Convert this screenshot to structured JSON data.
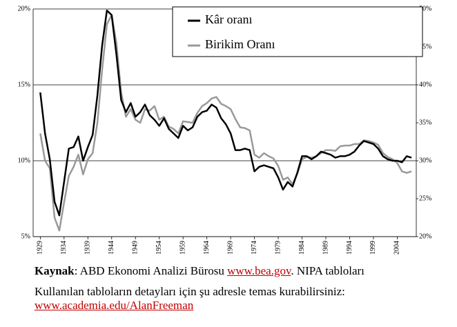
{
  "chart_data": {
    "type": "line",
    "x": [
      1929,
      1930,
      1931,
      1932,
      1933,
      1934,
      1935,
      1936,
      1937,
      1938,
      1939,
      1940,
      1941,
      1942,
      1943,
      1944,
      1945,
      1946,
      1947,
      1948,
      1949,
      1950,
      1951,
      1952,
      1953,
      1954,
      1955,
      1956,
      1957,
      1958,
      1959,
      1960,
      1961,
      1962,
      1963,
      1964,
      1965,
      1966,
      1967,
      1968,
      1969,
      1970,
      1971,
      1972,
      1973,
      1974,
      1975,
      1976,
      1977,
      1978,
      1979,
      1980,
      1981,
      1982,
      1983,
      1984,
      1985,
      1986,
      1987,
      1988,
      1989,
      1990,
      1991,
      1992,
      1993,
      1994,
      1995,
      1996,
      1997,
      1998,
      1999,
      2000,
      2001,
      2002,
      2003,
      2004,
      2005,
      2006,
      2007
    ],
    "series": [
      {
        "name": "Kâr oranı",
        "color": "#000000",
        "values": [
          14.5,
          11.8,
          10.1,
          7.3,
          6.4,
          8.6,
          10.8,
          10.9,
          11.6,
          10.0,
          10.9,
          11.7,
          14.3,
          17.6,
          19.9,
          19.6,
          17.0,
          14.0,
          13.2,
          13.8,
          12.9,
          13.2,
          13.7,
          13.0,
          12.7,
          12.3,
          12.8,
          12.1,
          11.8,
          11.5,
          12.3,
          12.0,
          12.2,
          12.9,
          13.2,
          13.3,
          13.7,
          13.5,
          12.8,
          12.4,
          11.8,
          10.7,
          10.7,
          10.8,
          10.7,
          9.3,
          9.6,
          9.7,
          9.6,
          9.5,
          8.9,
          8.1,
          8.6,
          8.3,
          9.2,
          10.3,
          10.3,
          10.1,
          10.3,
          10.6,
          10.5,
          10.4,
          10.2,
          10.3,
          10.3,
          10.4,
          10.6,
          11.0,
          11.3,
          11.2,
          11.1,
          10.8,
          10.3,
          10.1,
          10.0,
          10.0,
          9.9,
          10.3,
          10.2
        ]
      },
      {
        "name": "Birikim Oranı",
        "color": "#999999",
        "axis": "y2",
        "values": [
          33.6,
          30.0,
          29.0,
          22.5,
          20.8,
          24.5,
          28.0,
          29.2,
          30.8,
          28.2,
          30.2,
          31.0,
          35.0,
          42.0,
          48.0,
          49.2,
          45.5,
          39.0,
          35.8,
          36.8,
          35.4,
          35.0,
          36.8,
          36.6,
          37.2,
          35.4,
          35.8,
          34.5,
          34.2,
          33.6,
          35.2,
          35.1,
          35.0,
          36.3,
          37.2,
          37.6,
          38.2,
          38.4,
          37.5,
          37.2,
          36.8,
          35.5,
          34.4,
          34.3,
          34.0,
          30.8,
          30.4,
          31.0,
          30.6,
          30.3,
          29.3,
          27.5,
          27.8,
          26.9,
          28.3,
          30.2,
          30.5,
          30.4,
          30.6,
          31.0,
          31.4,
          31.4,
          31.3,
          31.9,
          32.0,
          32.0,
          32.2,
          32.2,
          32.7,
          32.6,
          32.4,
          32.1,
          31.0,
          30.5,
          30.2,
          29.7,
          28.6,
          28.4,
          28.6
        ]
      }
    ],
    "xlim": [
      1927.5,
      2008
    ],
    "xticks": [
      1929,
      1934,
      1939,
      1944,
      1949,
      1954,
      1959,
      1964,
      1969,
      1974,
      1979,
      1984,
      1989,
      1994,
      1999,
      2004
    ],
    "ylim": [
      5,
      20
    ],
    "yticks": [
      {
        "value": 5,
        "label": "5%"
      },
      {
        "value": 10,
        "label": "10%"
      },
      {
        "value": 15,
        "label": "15%"
      },
      {
        "value": 20,
        "label": "20%"
      }
    ],
    "y2lim": [
      20,
      50
    ],
    "y2ticks": [
      {
        "value": 20,
        "label": "20%"
      },
      {
        "value": 25,
        "label": "25%"
      },
      {
        "value": 30,
        "label": "30%"
      },
      {
        "value": 35,
        "label": "35%"
      },
      {
        "value": 40,
        "label": "40%"
      },
      {
        "value": 45,
        "label": "45%"
      },
      {
        "value": 50,
        "label": "50%"
      }
    ],
    "grid": true,
    "legend": "top-right"
  },
  "notes": {
    "source_label": "Kaynak",
    "source_text": ": ABD Ekonomi Analizi Bürosu ",
    "source_link": "www.bea.gov",
    "source_after": ". NIPA tabloları",
    "contact_text": "Kullanılan tabloların detayları için şu adresle temas kurabilirsiniz:",
    "contact_link": "www.academia.edu/AlanFreeman"
  }
}
